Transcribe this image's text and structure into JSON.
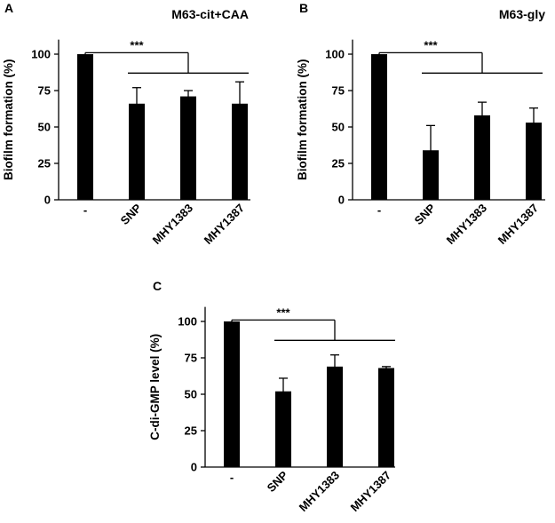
{
  "figure": {
    "panels": [
      "A",
      "B",
      "C"
    ]
  },
  "chart_data": [
    {
      "panel": "A",
      "type": "bar",
      "title": "M63-cit+CAA",
      "ylabel": "Biofilm formation (%)",
      "xlabel": "",
      "categories": [
        "-",
        "SNP",
        "MHY1383",
        "MHY1387"
      ],
      "values": [
        100,
        66,
        71,
        66
      ],
      "errors": [
        0,
        11,
        4,
        15
      ],
      "ylim": [
        0,
        110
      ],
      "yticks": [
        0,
        25,
        50,
        75,
        100
      ],
      "bar_color": "#000000",
      "significance": "***",
      "grid": false
    },
    {
      "panel": "B",
      "type": "bar",
      "title": "M63-gly",
      "ylabel": "Biofilm formation (%)",
      "xlabel": "",
      "categories": [
        "-",
        "SNP",
        "MHY1383",
        "MHY1387"
      ],
      "values": [
        100,
        34,
        58,
        53
      ],
      "errors": [
        0,
        17,
        9,
        10
      ],
      "ylim": [
        0,
        110
      ],
      "yticks": [
        0,
        25,
        50,
        75,
        100
      ],
      "bar_color": "#000000",
      "significance": "***",
      "grid": false
    },
    {
      "panel": "C",
      "type": "bar",
      "title": "",
      "ylabel": "C-di-GMP level (%)",
      "xlabel": "",
      "categories": [
        "-",
        "SNP",
        "MHY1383",
        "MHY1387"
      ],
      "values": [
        100,
        52,
        69,
        68
      ],
      "errors": [
        0,
        9,
        8,
        1
      ],
      "ylim": [
        0,
        110
      ],
      "yticks": [
        0,
        25,
        50,
        75,
        100
      ],
      "bar_color": "#000000",
      "significance": "***",
      "grid": false
    }
  ]
}
